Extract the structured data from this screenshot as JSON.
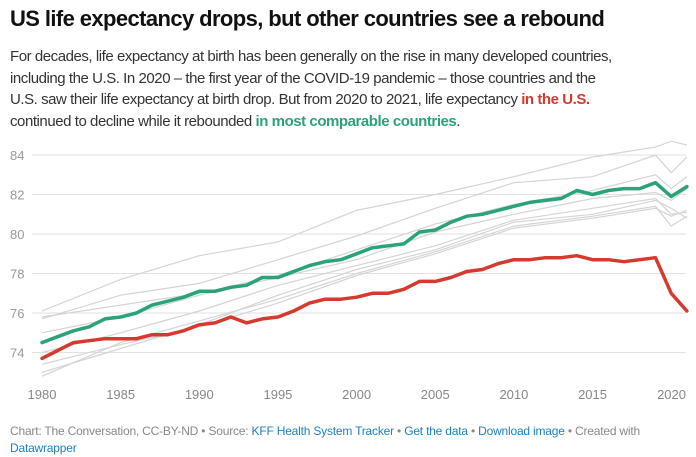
{
  "header": {
    "title": "US life expectancy drops, but other countries see a rebound",
    "subtitle_line1": "For decades, life expectancy at birth has been generally on the rise in many developed countries,",
    "subtitle_line2": "including the U.S. In 2020 – the first year of the COVID-19 pandemic – those countries and the",
    "subtitle_line3a": "U.S. saw their life expectancy at birth drop. But from 2020 to 2021, life expectancy ",
    "subtitle_line3_highlight": "in the U.S.",
    "subtitle_line4a": "continued to decline while it rebounded ",
    "subtitle_line4_highlight": "in most comparable countries",
    "subtitle_line4b": "."
  },
  "footer": {
    "chart_credit": "Chart: The Conversation, CC-BY-ND",
    "sep": " • ",
    "source_label": "Source: ",
    "source_link": "KFF Health System Tracker",
    "get_data": "Get the data",
    "download": "Download image",
    "created_with": "Created with",
    "datawrapper": "Datawrapper"
  },
  "chart_data": {
    "type": "line",
    "title": "US life expectancy drops, but other countries see a rebound",
    "xlabel": "",
    "ylabel": "",
    "xlim": [
      1980,
      2021
    ],
    "ylim": [
      72.8,
      84.8
    ],
    "x_ticks": [
      1980,
      1985,
      1990,
      1995,
      2000,
      2005,
      2010,
      2015,
      2020
    ],
    "y_ticks": [
      74,
      76,
      78,
      80,
      82,
      84
    ],
    "grid": "horizontal",
    "colors": {
      "us": "#d63a2f",
      "comparable": "#2aa37a",
      "other": "#d4d4d8",
      "grid": "#e2e2e2",
      "link": "#1d81c6"
    },
    "x": [
      1980,
      1981,
      1982,
      1983,
      1984,
      1985,
      1986,
      1987,
      1988,
      1989,
      1990,
      1991,
      1992,
      1993,
      1994,
      1995,
      1996,
      1997,
      1998,
      1999,
      2000,
      2001,
      2002,
      2003,
      2004,
      2005,
      2006,
      2007,
      2008,
      2009,
      2010,
      2011,
      2012,
      2013,
      2014,
      2015,
      2016,
      2017,
      2018,
      2019,
      2020,
      2021
    ],
    "series": [
      {
        "name": "in the U.S.",
        "values": [
          73.7,
          74.1,
          74.5,
          74.6,
          74.7,
          74.7,
          74.7,
          74.9,
          74.9,
          75.1,
          75.4,
          75.5,
          75.8,
          75.5,
          75.7,
          75.8,
          76.1,
          76.5,
          76.7,
          76.7,
          76.8,
          77.0,
          77.0,
          77.2,
          77.6,
          77.6,
          77.8,
          78.1,
          78.2,
          78.5,
          78.7,
          78.7,
          78.8,
          78.8,
          78.9,
          78.7,
          78.7,
          78.6,
          78.7,
          78.8,
          77.0,
          76.1
        ]
      },
      {
        "name": "in most comparable countries",
        "values": [
          74.5,
          74.8,
          75.1,
          75.3,
          75.7,
          75.8,
          76.0,
          76.4,
          76.6,
          76.8,
          77.1,
          77.1,
          77.3,
          77.4,
          77.8,
          77.8,
          78.1,
          78.4,
          78.6,
          78.7,
          79.0,
          79.3,
          79.4,
          79.5,
          80.1,
          80.2,
          80.6,
          80.9,
          81.0,
          81.2,
          81.4,
          81.6,
          81.7,
          81.8,
          82.2,
          82.0,
          82.2,
          82.3,
          82.3,
          82.6,
          81.9,
          82.4
        ]
      }
    ],
    "other_series_x": [
      1980,
      1985,
      1990,
      1995,
      2000,
      2005,
      2010,
      2015,
      2019,
      2020,
      2021
    ],
    "other_series": [
      [
        76.1,
        77.7,
        78.9,
        79.6,
        81.2,
        82.0,
        82.9,
        83.9,
        84.4,
        84.7,
        84.5
      ],
      [
        75.7,
        76.9,
        77.5,
        78.7,
        79.9,
        81.3,
        82.6,
        82.9,
        84.0,
        83.1,
        83.9
      ],
      [
        75.8,
        76.4,
        77.0,
        77.9,
        79.2,
        80.5,
        81.5,
        82.2,
        83.0,
        82.3,
        82.9
      ],
      [
        75.0,
        75.8,
        76.9,
        77.8,
        78.7,
        80.1,
        81.0,
        81.8,
        82.1,
        81.7,
        82.3
      ],
      [
        74.0,
        75.0,
        76.1,
        77.4,
        78.4,
        79.4,
        80.7,
        81.3,
        81.8,
        81.0,
        81.1
      ],
      [
        73.0,
        74.2,
        75.4,
        76.9,
        78.2,
        79.2,
        80.6,
        81.0,
        81.7,
        81.3,
        80.8
      ],
      [
        72.8,
        74.5,
        75.6,
        76.7,
        78.0,
        79.1,
        80.4,
        80.9,
        81.4,
        80.4,
        80.9
      ],
      [
        73.4,
        74.4,
        75.3,
        76.5,
        77.9,
        79.0,
        80.3,
        80.8,
        81.3,
        80.9,
        81.2
      ]
    ]
  }
}
